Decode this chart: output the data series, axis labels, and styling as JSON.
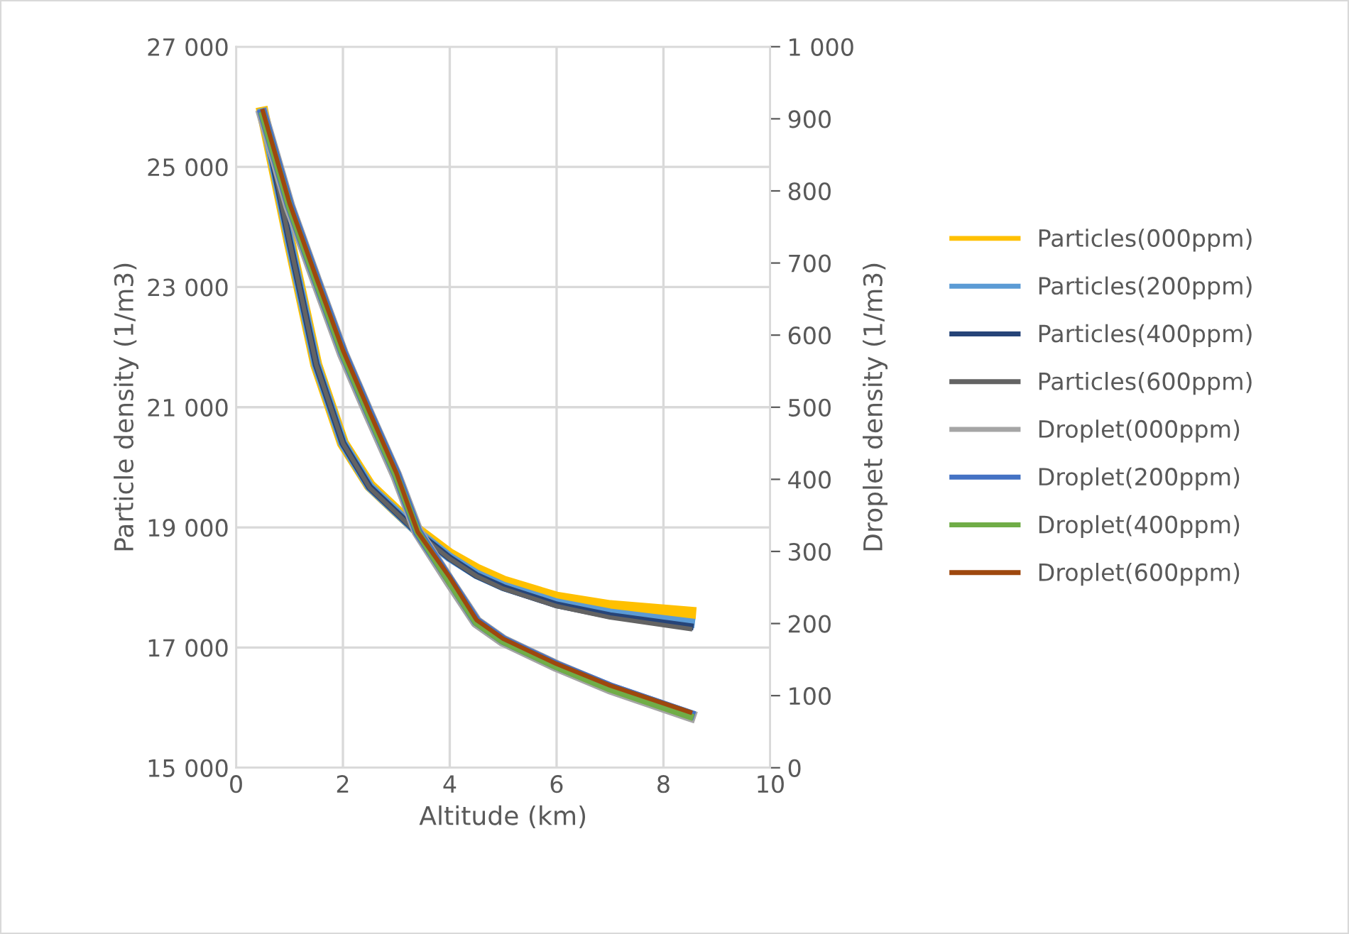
{
  "chart_data": {
    "type": "line",
    "xlabel": "Altitude (km)",
    "ylabel": "Particle density (1/m3)",
    "y2label": "Droplet density (1/m3)",
    "x": [
      0.5,
      1,
      1.5,
      2,
      2.5,
      3,
      3.4,
      4,
      4.5,
      5,
      6,
      7,
      8.5
    ],
    "xlim": [
      0,
      10
    ],
    "xticks": [
      0,
      2,
      4,
      6,
      8,
      10
    ],
    "ylim": [
      15000,
      27000
    ],
    "yticks": [
      {
        "value": 15000,
        "label": "15 000"
      },
      {
        "value": 17000,
        "label": "17 000"
      },
      {
        "value": 19000,
        "label": "19 000"
      },
      {
        "value": 21000,
        "label": "21 000"
      },
      {
        "value": 23000,
        "label": "23 000"
      },
      {
        "value": 25000,
        "label": "25 000"
      },
      {
        "value": 27000,
        "label": "27 000"
      }
    ],
    "y2lim": [
      0,
      1000
    ],
    "y2ticks": [
      0,
      100,
      200,
      300,
      400,
      500,
      600,
      700,
      800,
      {
        "value": 900,
        "label": "900"
      },
      {
        "value": 1000,
        "label": "1 000"
      }
    ],
    "grid": true,
    "legend": "right",
    "marker": "none",
    "line_style": "solid",
    "series": [
      {
        "name": "Particles(000ppm)",
        "color": "#ffc000",
        "values": [
          25900,
          23760,
          21710,
          20400,
          19700,
          19280,
          18950,
          18550,
          18300,
          18100,
          17830,
          17690,
          17580
        ]
      },
      {
        "name": "Particles(200ppm)",
        "color": "#5b9bd5",
        "values": [
          25900,
          23760,
          21710,
          20400,
          19680,
          19260,
          18920,
          18500,
          18220,
          18020,
          17740,
          17570,
          17410
        ]
      },
      {
        "name": "Particles(400ppm)",
        "color": "#264478",
        "values": [
          25900,
          23760,
          21710,
          20400,
          19670,
          19250,
          18910,
          18490,
          18200,
          18000,
          17710,
          17530,
          17350
        ]
      },
      {
        "name": "Particles(600ppm)",
        "color": "#636363",
        "values": [
          25900,
          23760,
          21710,
          20400,
          19660,
          19240,
          18900,
          18480,
          18190,
          17980,
          17690,
          17500,
          17310
        ]
      },
      {
        "name": "Droplet(000ppm)",
        "color": "#a5a5a5",
        "axis": "y2",
        "values": [
          905,
          778,
          675,
          574,
          488,
          405,
          327,
          258,
          202,
          176,
          141,
          110,
          72
        ]
      },
      {
        "name": "Droplet(200ppm)",
        "color": "#4472c4",
        "axis": "y2",
        "values": [
          907,
          780,
          677,
          576,
          490,
          407,
          327,
          260,
          203,
          177,
          142,
          112,
          74
        ]
      },
      {
        "name": "Droplet(400ppm)",
        "color": "#70ad47",
        "axis": "y2",
        "values": [
          905,
          778,
          675,
          574,
          488,
          405,
          327,
          257,
          201,
          175,
          140,
          109,
          71
        ]
      },
      {
        "name": "Droplet(600ppm)",
        "color": "#9e480e",
        "axis": "y2",
        "values": [
          911,
          783,
          680,
          579,
          493,
          409,
          327,
          264,
          205,
          179,
          144,
          114,
          77
        ]
      }
    ]
  }
}
